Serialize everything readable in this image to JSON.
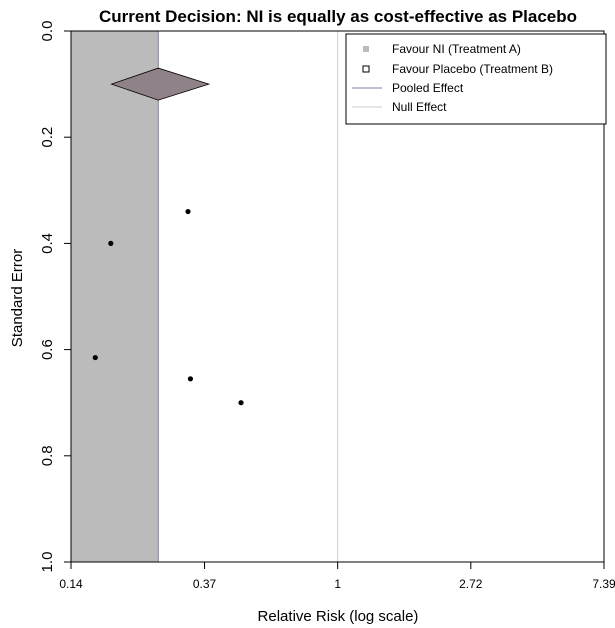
{
  "chart_data": {
    "type": "scatter",
    "title": "Current Decision: NI is equally as cost-effective as Placebo",
    "xlabel": "Relative Risk (log scale)",
    "ylabel": "Standard Error",
    "x_scale": "log",
    "xlim": [
      0.14,
      7.39
    ],
    "ylim": [
      0.0,
      1.0
    ],
    "y_reversed": true,
    "x_ticks": [
      {
        "value": 0.135,
        "label": "0.14"
      },
      {
        "value": 0.368,
        "label": "0.37"
      },
      {
        "value": 1.0,
        "label": "1"
      },
      {
        "value": 2.718,
        "label": "2.72"
      },
      {
        "value": 7.389,
        "label": "7.39"
      }
    ],
    "y_ticks": [
      {
        "value": 0.0,
        "label": "0.0"
      },
      {
        "value": 0.2,
        "label": "0.2"
      },
      {
        "value": 0.4,
        "label": "0.4"
      },
      {
        "value": 0.6,
        "label": "0.6"
      },
      {
        "value": 0.8,
        "label": "0.8"
      },
      {
        "value": 1.0,
        "label": "1.0"
      }
    ],
    "points": [
      {
        "x": 0.325,
        "y": 0.34
      },
      {
        "x": 0.182,
        "y": 0.4
      },
      {
        "x": 0.162,
        "y": 0.615
      },
      {
        "x": 0.331,
        "y": 0.655
      },
      {
        "x": 0.484,
        "y": 0.7
      }
    ],
    "favour_region": {
      "x_from": 0.135,
      "x_to": 0.26,
      "color": "#bbbbbb"
    },
    "pooled": {
      "estimate": 0.26,
      "ci_low": 0.183,
      "ci_high": 0.38,
      "se": 0.1,
      "color": "#8f8288"
    },
    "null_effect": 1.0,
    "legend": {
      "position": "top-right",
      "entries": [
        {
          "label": "Favour NI (Treatment A)",
          "symbol": "filled-square",
          "color": "#bbbbbb"
        },
        {
          "label": "Favour Placebo (Treatment B)",
          "symbol": "open-square",
          "color": "#000000"
        },
        {
          "label": "Pooled Effect",
          "symbol": "line",
          "color": "#8080a0"
        },
        {
          "label": "Null Effect",
          "symbol": "line",
          "color": "#cccccc"
        }
      ]
    }
  }
}
